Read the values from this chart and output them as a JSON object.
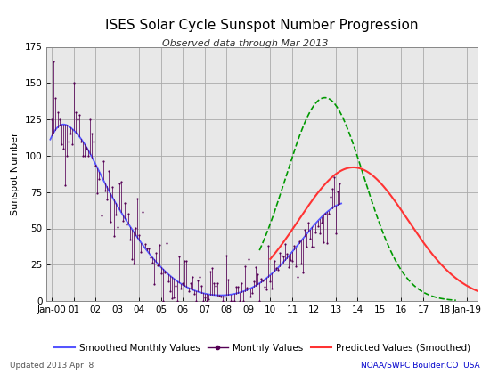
{
  "title": "ISES Solar Cycle Sunspot Number Progression",
  "subtitle": "Observed data through Mar 2013",
  "ylabel": "Sunspot Number",
  "updated_text": "Updated 2013 Apr  8",
  "noaa_text": "NOAA/SWPC Boulder,CO  USA",
  "ylim": [
    0,
    175
  ],
  "yticks": [
    0,
    25,
    50,
    75,
    100,
    125,
    150,
    175
  ],
  "xlim_start": 1999.75,
  "xlim_end": 2019.5,
  "background_color": "#e8e8e8",
  "smoothed_color": "#5555ff",
  "monthly_color": "#550055",
  "predicted_color": "#ff3333",
  "green_predicted_color": "#009900",
  "grid_color": "#aaaaaa",
  "title_fontsize": 11,
  "subtitle_fontsize": 8,
  "axis_label_fontsize": 8,
  "tick_fontsize": 7.5,
  "legend_fontsize": 7.5
}
